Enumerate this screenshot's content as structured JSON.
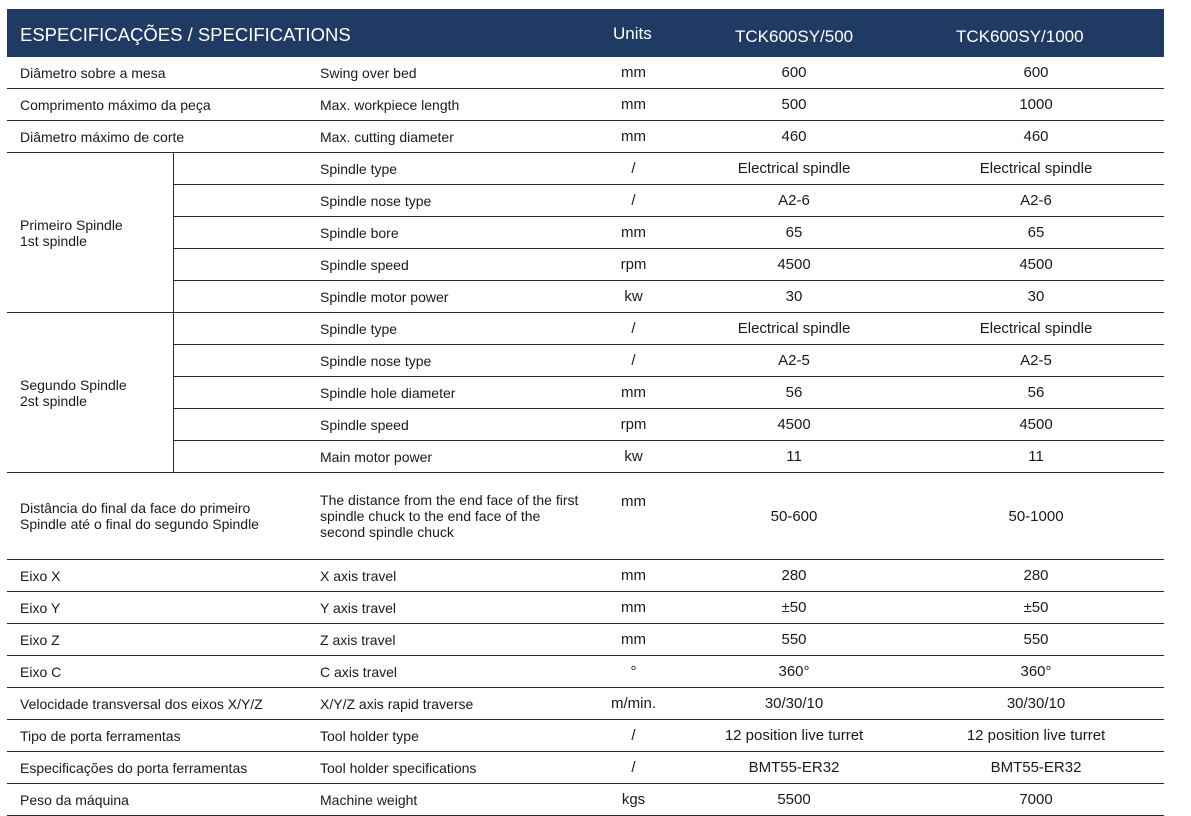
{
  "header": {
    "title": "ESPECIFICAÇÕES / SPECIFICATIONS",
    "units": "Units",
    "model1": "TCK600SY/500",
    "model2": "TCK600SY/1000"
  },
  "rows_top": [
    {
      "pt": "Diâmetro sobre a mesa",
      "en": "Swing over bed",
      "unit": "mm",
      "v1": "600",
      "v2": "600"
    },
    {
      "pt": "Comprimento máximo da peça",
      "en": "Max. workpiece length",
      "unit": "mm",
      "v1": "500",
      "v2": "1000"
    },
    {
      "pt": "Diâmetro máximo de corte",
      "en": "Max. cutting diameter",
      "unit": "mm",
      "v1": "460",
      "v2": "460"
    }
  ],
  "spindle1": {
    "group_pt": "Primeiro Spindle",
    "group_en": "1st spindle",
    "rows": [
      {
        "en": "Spindle type",
        "unit": "/",
        "v1": "Electrical spindle",
        "v2": "Electrical spindle"
      },
      {
        "en": "Spindle nose type",
        "unit": "/",
        "v1": "A2-6",
        "v2": "A2-6"
      },
      {
        "en": "Spindle bore",
        "unit": "mm",
        "v1": "65",
        "v2": "65"
      },
      {
        "en": "Spindle speed",
        "unit": "rpm",
        "v1": "4500",
        "v2": "4500"
      },
      {
        "en": "Spindle motor power",
        "unit": "kw",
        "v1": "30",
        "v2": "30"
      }
    ]
  },
  "spindle2": {
    "group_pt": "Segundo Spindle",
    "group_en": "2st spindle",
    "rows": [
      {
        "en": "Spindle type",
        "unit": "/",
        "v1": "Electrical spindle",
        "v2": "Electrical spindle"
      },
      {
        "en": "Spindle  nose type",
        "unit": "/",
        "v1": "A2-5",
        "v2": "A2-5"
      },
      {
        "en": "Spindle hole diameter",
        "unit": "mm",
        "v1": "56",
        "v2": "56"
      },
      {
        "en": "Spindle speed",
        "unit": "rpm",
        "v1": "4500",
        "v2": "4500"
      },
      {
        "en": "Main motor power",
        "unit": "kw",
        "v1": "11",
        "v2": "11"
      }
    ]
  },
  "distance_row": {
    "pt": "Distância do final da face do primeiro Spindle até o final do segundo Spindle",
    "en": "The distance from the end face of the first spindle chuck to the end face of the second spindle chuck",
    "unit": "mm",
    "v1": "50-600",
    "v2": "50-1000"
  },
  "rows_bottom": [
    {
      "pt": "Eixo X",
      "en": "X axis travel",
      "unit": "mm",
      "v1": "280",
      "v2": "280"
    },
    {
      "pt": "Eixo Y",
      "en": "Y axis travel",
      "unit": "mm",
      "v1": "±50",
      "v2": "±50"
    },
    {
      "pt": "Eixo Z",
      "en": "Z axis travel",
      "unit": "mm",
      "v1": "550",
      "v2": "550"
    },
    {
      "pt": "Eixo C",
      "en": "C axis travel",
      "unit": "°",
      "v1": "360°",
      "v2": "360°"
    },
    {
      "pt": "Velocidade transversal dos eixos X/Y/Z",
      "en": "X/Y/Z axis rapid traverse",
      "unit": "m/min.",
      "v1": "30/30/10",
      "v2": "30/30/10"
    },
    {
      "pt": "Tipo de porta ferramentas",
      "en": "Tool holder type",
      "unit": "/",
      "v1": "12 position live turret",
      "v2": "12 position live turret"
    },
    {
      "pt": "Especificações do porta ferramentas",
      "en": "Tool holder specifications",
      "unit": "/",
      "v1": "BMT55-ER32",
      "v2": "BMT55-ER32"
    },
    {
      "pt": "Peso da máquina",
      "en": "Machine weight",
      "unit": "kgs",
      "v1": "5500",
      "v2": "7000"
    }
  ]
}
